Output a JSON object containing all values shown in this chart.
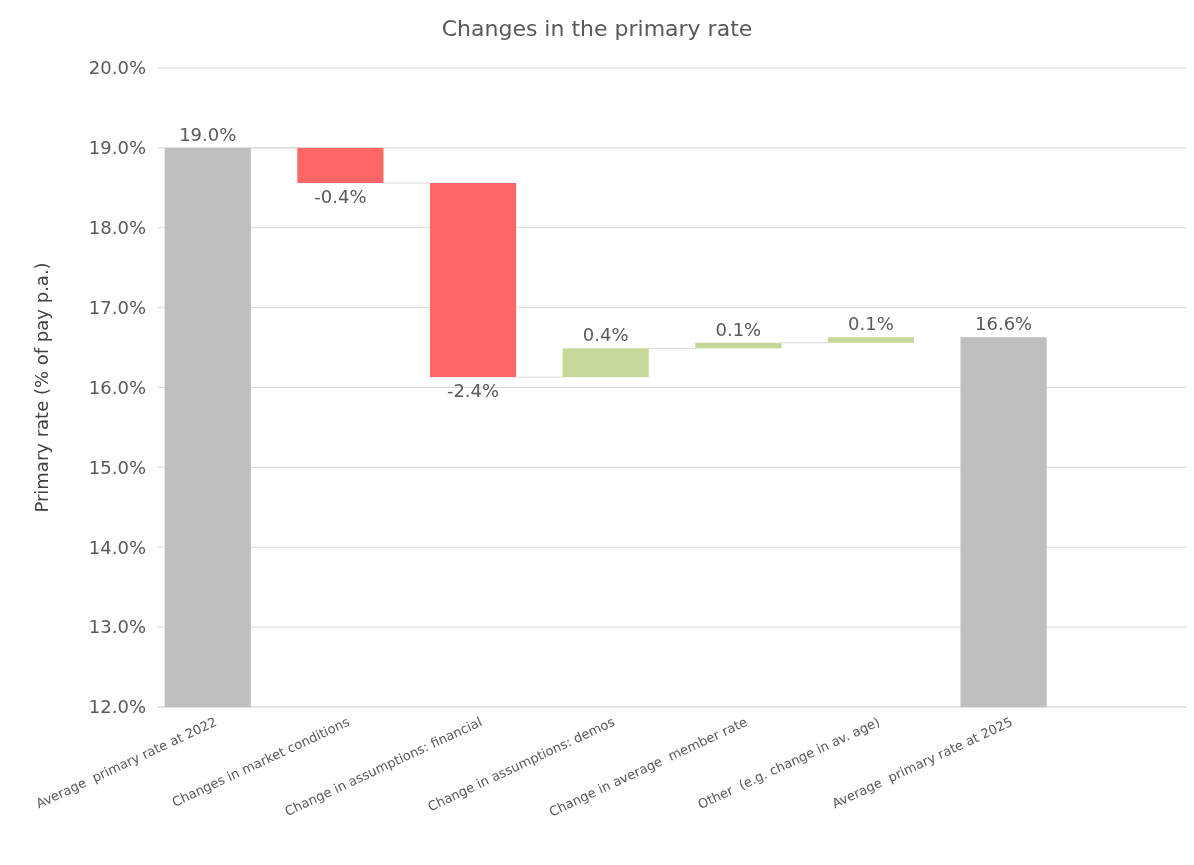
{
  "chart_data": {
    "type": "bar",
    "title": "Changes in the primary rate",
    "ylabel": "Primary rate (% of pay p.a.)",
    "categories": [
      "Average  primary rate at 2022",
      "Changes in market conditions",
      "Change in assumptions: financial",
      "Change in assumptions: demos",
      "Change in average  member rate",
      "Other  (e.g. change in av. age)",
      "Average  primary rate at 2025"
    ],
    "values": [
      7.0,
      -0.44,
      -2.43,
      0.36,
      0.07,
      0.07,
      4.63
    ],
    "base": [
      12.0,
      19.0,
      18.56,
      16.13,
      16.49,
      16.56,
      12.0
    ],
    "colors": [
      "#bfbfbf",
      "#ff6666",
      "#ff6666",
      "#c5d89a",
      "#c5d89a",
      "#c5d89a",
      "#bfbfbf"
    ],
    "value_labels": [
      "19.0%",
      "-0.4%",
      "-2.4%",
      "0.4%",
      "0.1%",
      "0.1%",
      "16.6%"
    ],
    "ylim": [
      12,
      20
    ],
    "yticks": [
      {
        "value": 12,
        "label": "12.0%"
      },
      {
        "value": 13,
        "label": "13.0%"
      },
      {
        "value": 14,
        "label": "14.0%"
      },
      {
        "value": 15,
        "label": "15.0%"
      },
      {
        "value": 16,
        "label": "16.0%"
      },
      {
        "value": 17,
        "label": "17.0%"
      },
      {
        "value": 18,
        "label": "18.0%"
      },
      {
        "value": 19,
        "label": "19.0%"
      },
      {
        "value": 20,
        "label": "20.0%"
      }
    ],
    "grid": "y"
  }
}
